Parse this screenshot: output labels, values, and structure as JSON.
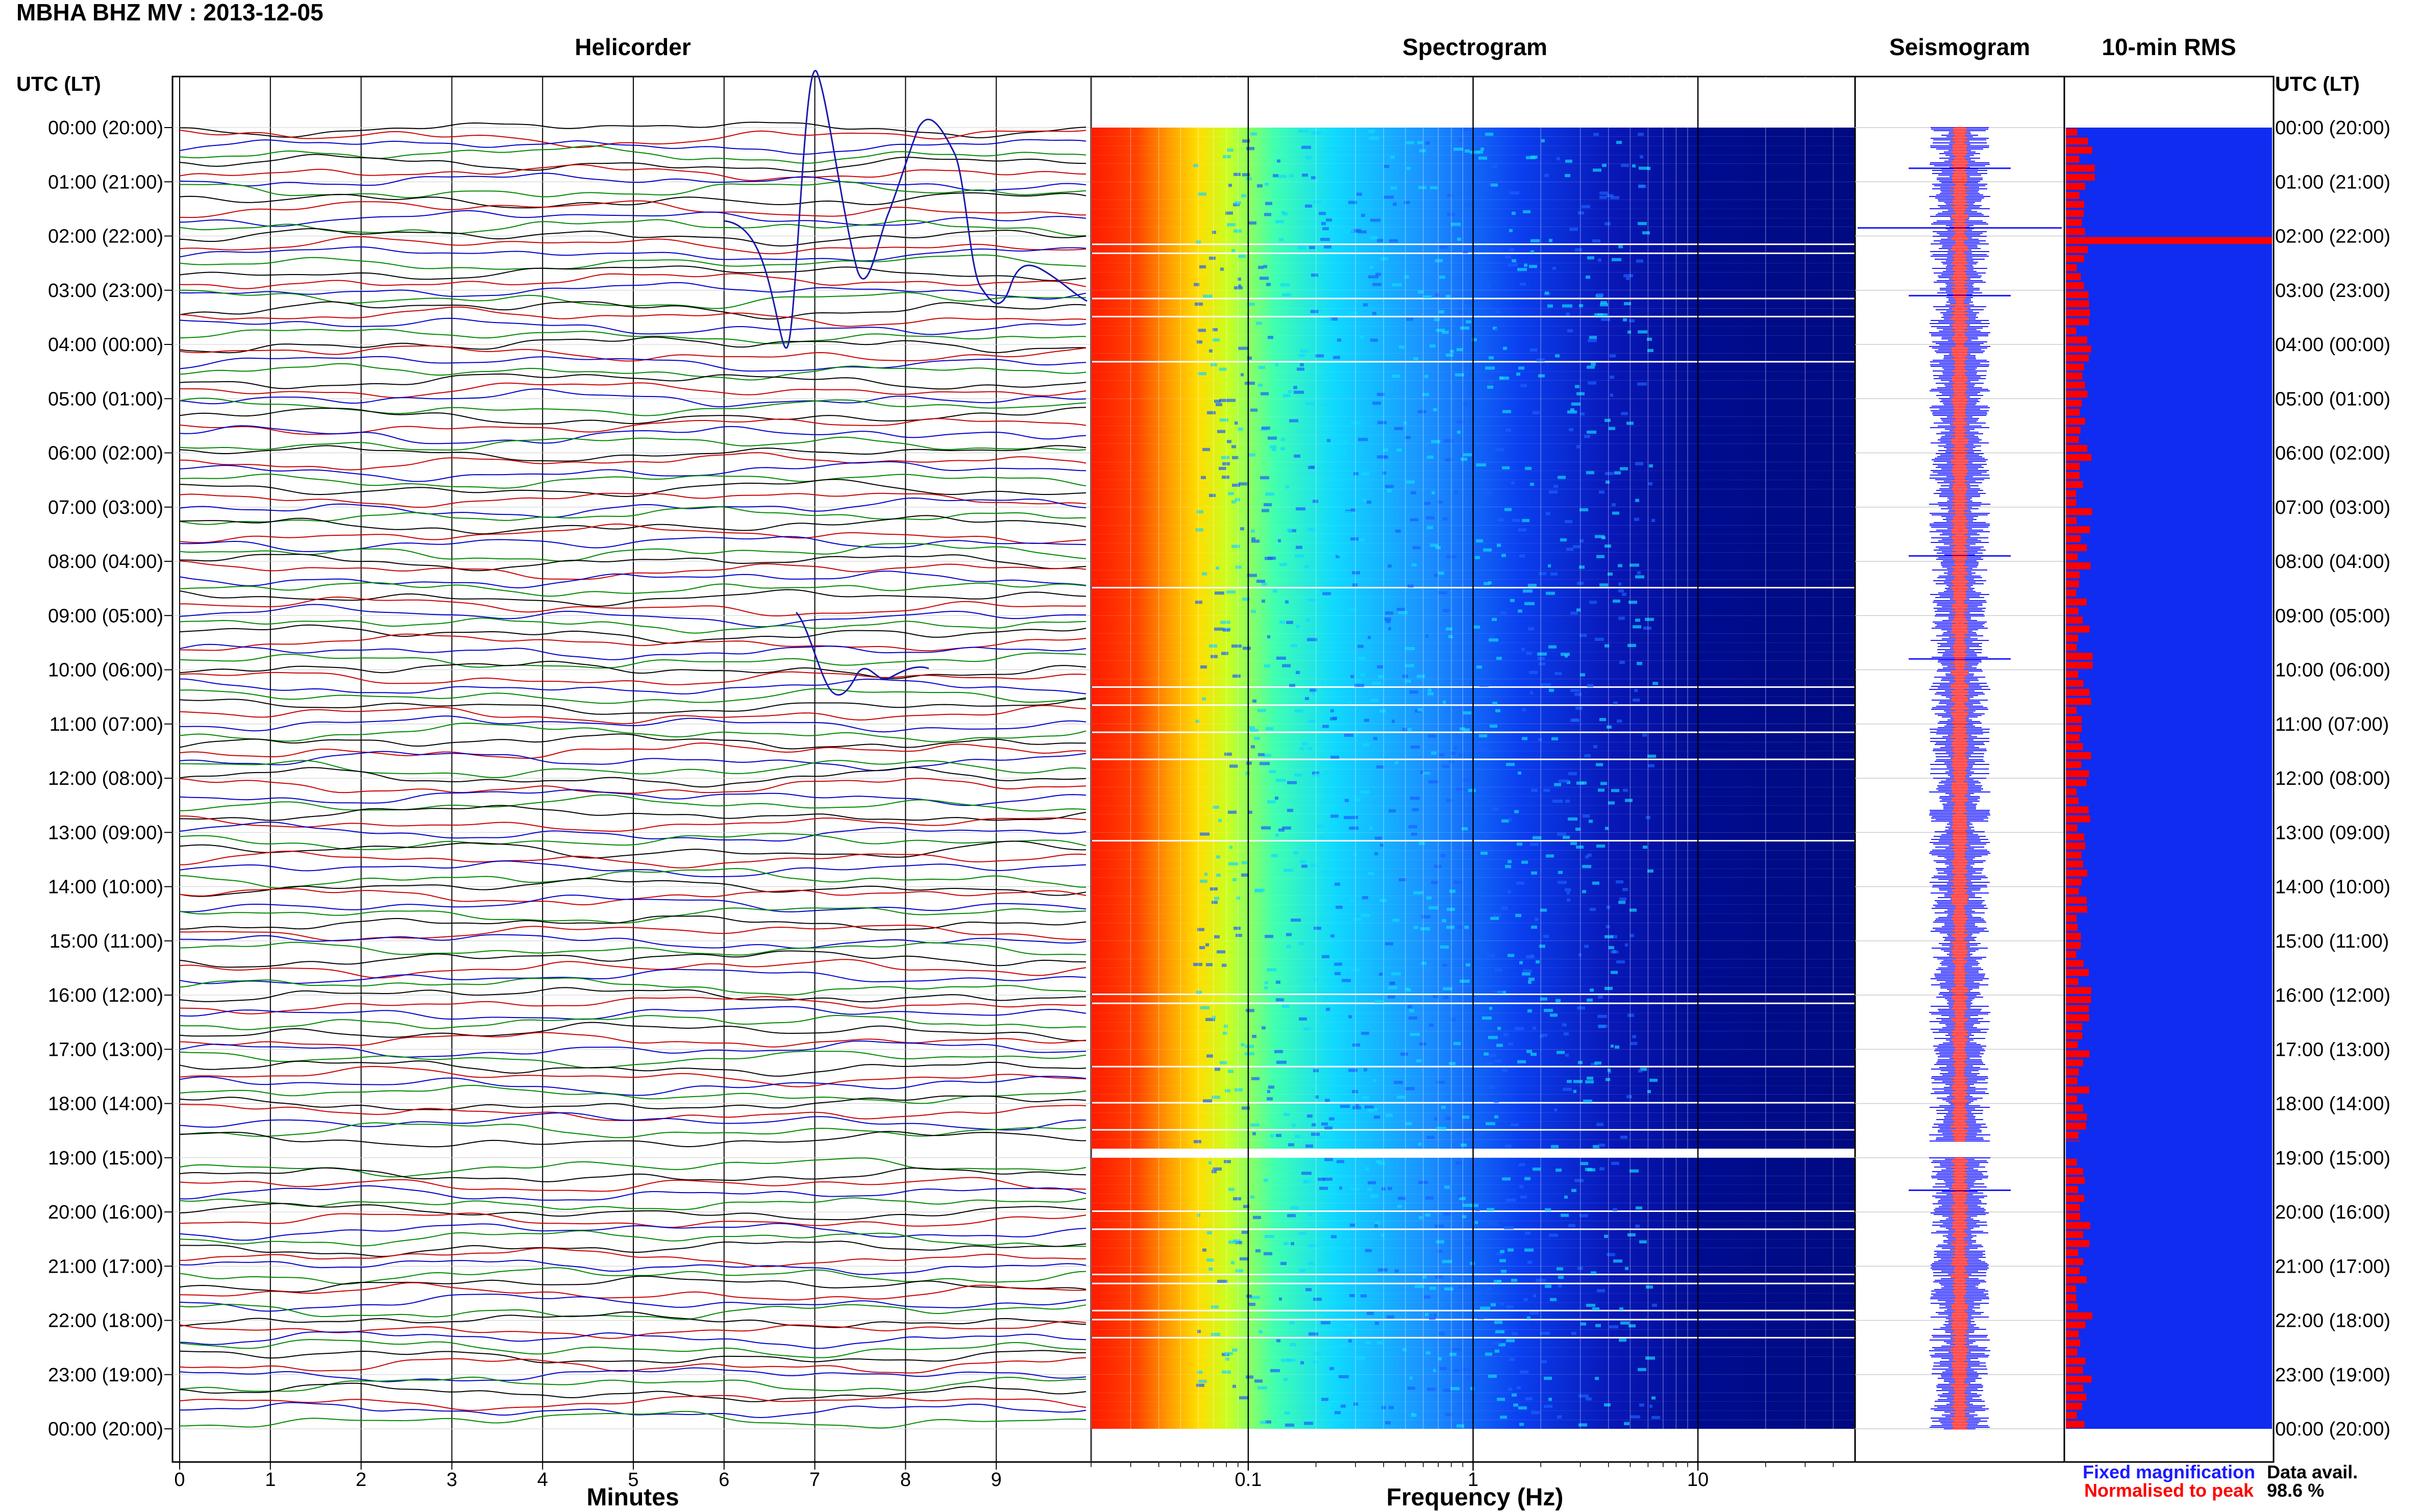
{
  "title": "MBHA BHZ MV : 2013-12-05",
  "time_axis_label": "UTC (LT)",
  "panels": {
    "helicorder": "Helicorder",
    "spectrogram": "Spectrogram",
    "seismogram": "Seismogram",
    "rms": "10-min RMS"
  },
  "axes": {
    "minutes_label": "Minutes",
    "frequency_label": "Frequency (Hz)"
  },
  "legend": {
    "fixed": "Fixed magnification",
    "normalised": "Normalised to peak",
    "fixed_color": "#1a1aff",
    "normalised_color": "#ff0000"
  },
  "data_availability": {
    "label": "Data avail.",
    "value": "98.6 %"
  },
  "chart_data": {
    "type": "line",
    "time_ticks": [
      "00:00 (20:00)",
      "01:00 (21:00)",
      "02:00 (22:00)",
      "03:00 (23:00)",
      "04:00 (00:00)",
      "05:00 (01:00)",
      "06:00 (02:00)",
      "07:00 (03:00)",
      "08:00 (04:00)",
      "09:00 (05:00)",
      "10:00 (06:00)",
      "11:00 (07:00)",
      "12:00 (08:00)",
      "13:00 (09:00)",
      "14:00 (10:00)",
      "15:00 (11:00)",
      "16:00 (12:00)",
      "17:00 (13:00)",
      "18:00 (14:00)",
      "19:00 (15:00)",
      "20:00 (16:00)",
      "21:00 (17:00)",
      "22:00 (18:00)",
      "23:00 (19:00)",
      "00:00 (20:00)"
    ],
    "helicorder": {
      "x_ticks": [
        "0",
        "1",
        "2",
        "3",
        "4",
        "5",
        "6",
        "7",
        "8",
        "9"
      ],
      "xlim": [
        0,
        10
      ],
      "trace_colors": [
        "#000000",
        "#cc0000",
        "#0000cc",
        "#008800"
      ],
      "traces_per_hour": 6
    },
    "spectrogram": {
      "x_ticks": [
        "0.1",
        "1",
        "10"
      ],
      "x_tick_values": [
        0.1,
        1,
        10
      ],
      "xlim": [
        0.02,
        50
      ],
      "scale": "log",
      "colormap": [
        "#ff0000",
        "#ff8800",
        "#ffff00",
        "#00ffff",
        "#0044ff",
        "#000088"
      ]
    },
    "gaps_hours": [
      18.7,
      19.0
    ],
    "rms_spikes": [
      {
        "hour": 0.75,
        "level": 0.14
      },
      {
        "hour": 2.0,
        "level": 1.0
      },
      {
        "hour": 3.0,
        "level": 0.11
      },
      {
        "hour": 8.0,
        "level": 0.12
      },
      {
        "hour": 9.75,
        "level": 0.13
      }
    ],
    "seismogram_spikes_hours": [
      0.75,
      1.85,
      3.1,
      7.9,
      9.8,
      19.6
    ]
  }
}
